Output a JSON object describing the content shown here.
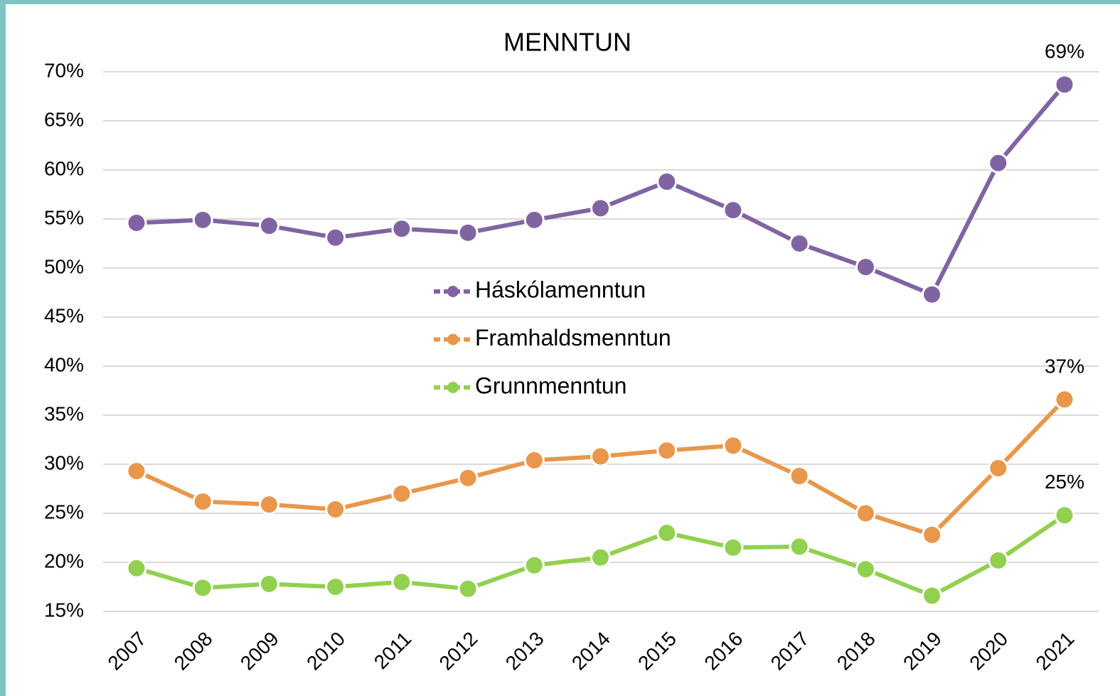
{
  "chart_data": {
    "type": "line",
    "title": "MENNTUN",
    "categories": [
      "2007",
      "2008",
      "2009",
      "2010",
      "2011",
      "2012",
      "2013",
      "2014",
      "2015",
      "2016",
      "2017",
      "2018",
      "2019",
      "2020",
      "2021"
    ],
    "series": [
      {
        "name": "Háskólamenntun",
        "color": "#8064a2",
        "values": [
          54.6,
          54.9,
          54.3,
          53.1,
          54.0,
          53.6,
          54.9,
          56.1,
          58.8,
          55.9,
          52.5,
          50.1,
          47.3,
          60.7,
          68.7
        ],
        "value_labels": [
          null,
          null,
          null,
          null,
          null,
          null,
          null,
          null,
          null,
          null,
          null,
          null,
          null,
          null,
          "69%"
        ]
      },
      {
        "name": "Framhaldsmenntun",
        "color": "#e8974b",
        "values": [
          29.3,
          26.2,
          25.9,
          25.4,
          27.0,
          28.6,
          30.4,
          30.8,
          31.4,
          31.9,
          28.8,
          25.0,
          22.8,
          29.6,
          36.6
        ],
        "value_labels": [
          null,
          null,
          null,
          null,
          null,
          null,
          null,
          null,
          null,
          null,
          null,
          null,
          null,
          null,
          "37%"
        ]
      },
      {
        "name": "Grunnmenntun",
        "color": "#92d050",
        "values": [
          19.4,
          17.4,
          17.8,
          17.5,
          18.0,
          17.3,
          19.7,
          20.5,
          23.0,
          21.5,
          21.6,
          19.3,
          16.6,
          20.2,
          24.8
        ],
        "value_labels": [
          null,
          null,
          null,
          null,
          null,
          null,
          null,
          null,
          null,
          null,
          null,
          null,
          null,
          null,
          "25%"
        ]
      }
    ],
    "ylim": [
      15,
      70
    ],
    "yticks": [
      {
        "value": 15,
        "label": "15%"
      },
      {
        "value": 20,
        "label": "20%"
      },
      {
        "value": 25,
        "label": "25%"
      },
      {
        "value": 30,
        "label": "30%"
      },
      {
        "value": 35,
        "label": "35%"
      },
      {
        "value": 40,
        "label": "40%"
      },
      {
        "value": 45,
        "label": "45%"
      },
      {
        "value": 50,
        "label": "50%"
      },
      {
        "value": 55,
        "label": "55%"
      },
      {
        "value": 60,
        "label": "60%"
      },
      {
        "value": 65,
        "label": "65%"
      },
      {
        "value": 70,
        "label": "70%"
      }
    ],
    "grid": true,
    "legend": "center"
  }
}
